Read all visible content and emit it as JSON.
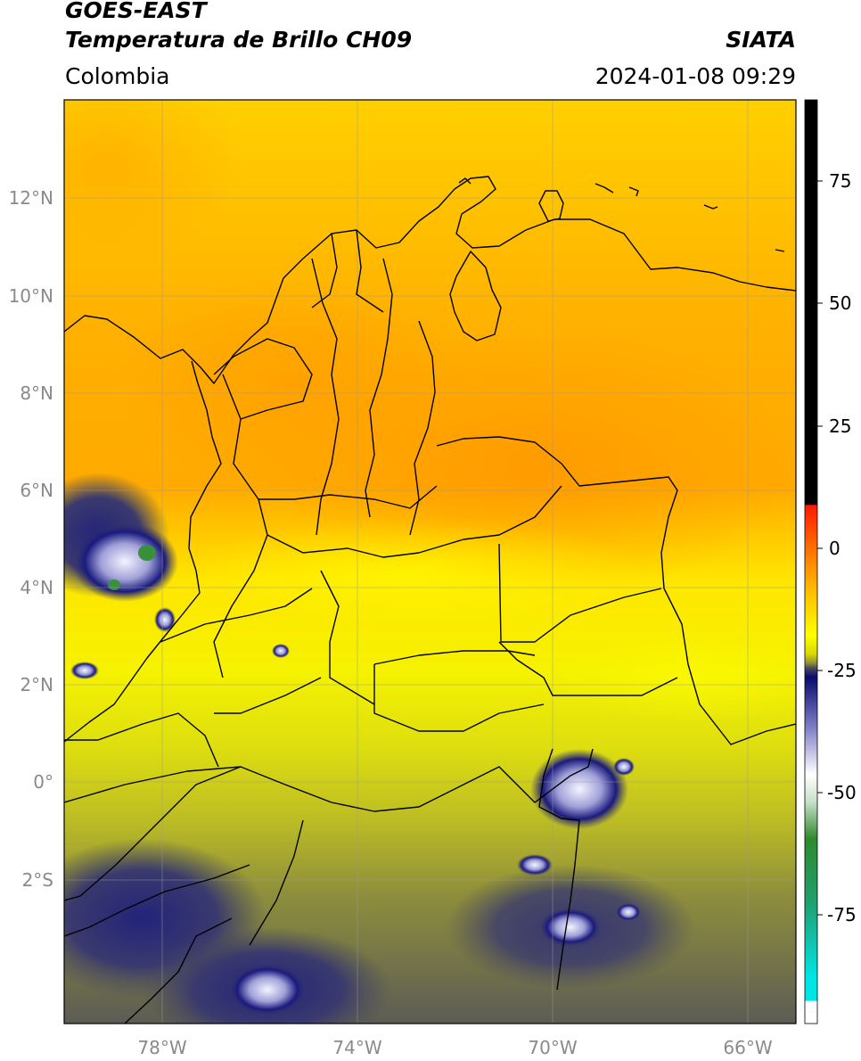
{
  "header": {
    "title_line1": "GOES-EAST",
    "title_line2": "Temperatura de Brillo CH09",
    "region": "Colombia",
    "source": "SIATA",
    "datetime": "2024-01-08 09:29"
  },
  "map": {
    "lon_ticks": [
      "78°W",
      "74°W",
      "70°W",
      "66°W"
    ],
    "lat_ticks": [
      "12°N",
      "10°N",
      "8°N",
      "6°N",
      "4°N",
      "2°N",
      "0°",
      "2°S"
    ]
  },
  "colorbar": {
    "ticks": [
      "75",
      "50",
      "25",
      "0",
      "-25",
      "-50",
      "-75"
    ],
    "range": [
      -95,
      90
    ],
    "colors": {
      "hot": "#000000",
      "red": "#ff2a00",
      "orange": "#ff9900",
      "yellow": "#ffff00",
      "olive": "#8c8c3a",
      "navy": "#0a0a6e",
      "white": "#ffffff",
      "green": "#2e8b2e",
      "cyan": "#00e5e5"
    }
  }
}
